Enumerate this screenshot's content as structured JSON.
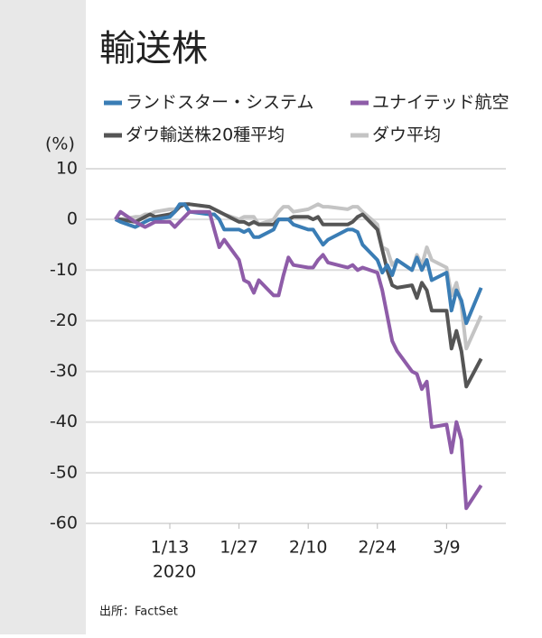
{
  "chart_data": {
    "type": "line",
    "title": "輸送株",
    "y_unit": "(%)",
    "x_year": "2020",
    "source": "出所：FactSet",
    "x": [
      2,
      3,
      6,
      7,
      8,
      9,
      10,
      13,
      14,
      15,
      16,
      17,
      21,
      22,
      23,
      24,
      27,
      28,
      29,
      30,
      31,
      34,
      35,
      36,
      37,
      38,
      41,
      42,
      43,
      44,
      45,
      49,
      50,
      51,
      52,
      55,
      56,
      57,
      58,
      59,
      62,
      63,
      64,
      65,
      66,
      69,
      70,
      71,
      72,
      73,
      76
    ],
    "xlim": [
      -4,
      81
    ],
    "xticks": [
      {
        "value": 13,
        "label": "1/13"
      },
      {
        "value": 27,
        "label": "1/27"
      },
      {
        "value": 41,
        "label": "2/10"
      },
      {
        "value": 55,
        "label": "2/24"
      },
      {
        "value": 69,
        "label": "3/9"
      }
    ],
    "ylim": [
      -60,
      10
    ],
    "yticks": [
      10,
      0,
      -10,
      -20,
      -30,
      -40,
      -50,
      -60
    ],
    "grid": true,
    "series": [
      {
        "name": "ダウ平均",
        "color": "#c4c4c4",
        "values": [
          0,
          0,
          0.5,
          0.5,
          1,
          1,
          1.5,
          2,
          2,
          2.5,
          3,
          3,
          2.5,
          2,
          1.5,
          1,
          0,
          0.5,
          0.5,
          0.5,
          -1,
          0,
          1.5,
          2.5,
          2.5,
          1.5,
          2,
          2.5,
          3,
          2.5,
          2.5,
          2,
          2.5,
          2.5,
          1.5,
          -1,
          -5.5,
          -6,
          -9,
          -8,
          -10,
          -7,
          -9,
          -5.5,
          -8,
          -9.5,
          -15,
          -12.5,
          -17,
          -25.5,
          -19
        ]
      },
      {
        "name": "ダウ輸送株20種平均",
        "color": "#555555",
        "values": [
          0,
          0,
          -0.5,
          0,
          0.5,
          1,
          0.5,
          1,
          1.5,
          2.5,
          3,
          3,
          2.5,
          2,
          1.5,
          1,
          -0.5,
          -0.5,
          -1,
          -0.5,
          -1,
          -1,
          0,
          0,
          0,
          0.5,
          0.5,
          0,
          0.5,
          -1,
          -1,
          -1,
          -0.5,
          0.5,
          1,
          -2,
          -6,
          -10,
          -13,
          -13.5,
          -13,
          -15.5,
          -12.5,
          -14,
          -18,
          -18,
          -25.5,
          -22,
          -26,
          -33,
          -27.5
        ]
      },
      {
        "name": "ランドスター・システム",
        "color": "#3a7db5",
        "values": [
          0,
          -0.5,
          -1.5,
          -1,
          -0.5,
          0,
          0,
          0.5,
          1.5,
          3,
          3,
          1.5,
          1,
          1,
          0,
          -2,
          -2,
          -2.5,
          -2,
          -3.5,
          -3.5,
          -2,
          0,
          0,
          0,
          -1,
          -2,
          -2,
          -3.5,
          -5,
          -4,
          -2,
          -2,
          -2.5,
          -5,
          -8,
          -10.5,
          -9,
          -11,
          -8,
          -10,
          -7.5,
          -10,
          -8,
          -12,
          -10.5,
          -18,
          -14,
          -16,
          -20.5,
          -13.5
        ]
      },
      {
        "name": "ユナイテッド航空",
        "color": "#8e5ca8",
        "values": [
          0,
          1.5,
          -0.5,
          -1,
          -1.5,
          -1,
          -0.5,
          -0.5,
          -1.5,
          -0.5,
          0.5,
          1.5,
          1.5,
          -2,
          -5.5,
          -4,
          -8,
          -12,
          -12.5,
          -14.5,
          -12,
          -15,
          -15,
          -11,
          -7.5,
          -9,
          -9.5,
          -9.5,
          -8,
          -7,
          -8.5,
          -9.5,
          -9,
          -10,
          -9.5,
          -10.5,
          -14,
          -19,
          -24,
          -26,
          -30,
          -30.5,
          -33.5,
          -32,
          -41,
          -40.5,
          -46,
          -40,
          -43.5,
          -57,
          -52.5
        ]
      }
    ],
    "legend_order": [
      2,
      3,
      1,
      0
    ]
  }
}
